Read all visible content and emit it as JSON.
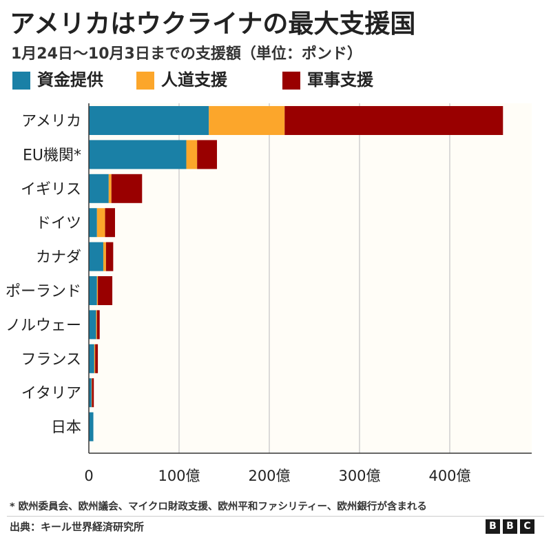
{
  "header": {
    "title": "アメリカはウクライナの最大支援国",
    "subtitle": "1月24日～10月3日までの支援額（単位：ポンド）"
  },
  "legend": [
    {
      "label": "資金提供",
      "color": "#1a80a6"
    },
    {
      "label": "人道支援",
      "color": "#fca62b"
    },
    {
      "label": "軍事支援",
      "color": "#990000"
    }
  ],
  "chart_data": {
    "type": "bar",
    "orientation": "horizontal",
    "stacked": true,
    "categories": [
      "アメリカ",
      "EU機関*",
      "イギリス",
      "ドイツ",
      "カナダ",
      "ポーランド",
      "ノルウェー",
      "フランス",
      "イタリア",
      "日本"
    ],
    "series": [
      {
        "name": "資金提供",
        "color": "#1a80a6",
        "values": [
          133,
          108,
          22,
          9,
          16,
          9,
          8,
          6,
          3,
          5
        ]
      },
      {
        "name": "人道支援",
        "color": "#fca62b",
        "values": [
          84,
          12,
          3,
          9,
          3,
          1,
          1,
          1,
          0.5,
          0
        ]
      },
      {
        "name": "軍事支援",
        "color": "#990000",
        "values": [
          242,
          22,
          34,
          11,
          8,
          16,
          3,
          3,
          2,
          0
        ]
      }
    ],
    "xlim": [
      0,
      490
    ],
    "xticks": [
      0,
      100,
      200,
      300,
      400
    ],
    "xtick_labels": [
      "0",
      "100億",
      "200億",
      "300億",
      "400億"
    ],
    "grid": true
  },
  "footnote": "* 欧州委員会、欧州議会、マイクロ財政支援、欧州平和ファシリティー、欧州銀行が含まれる",
  "source": "出典：キール世界経済研究所",
  "logo": [
    "B",
    "B",
    "C"
  ]
}
